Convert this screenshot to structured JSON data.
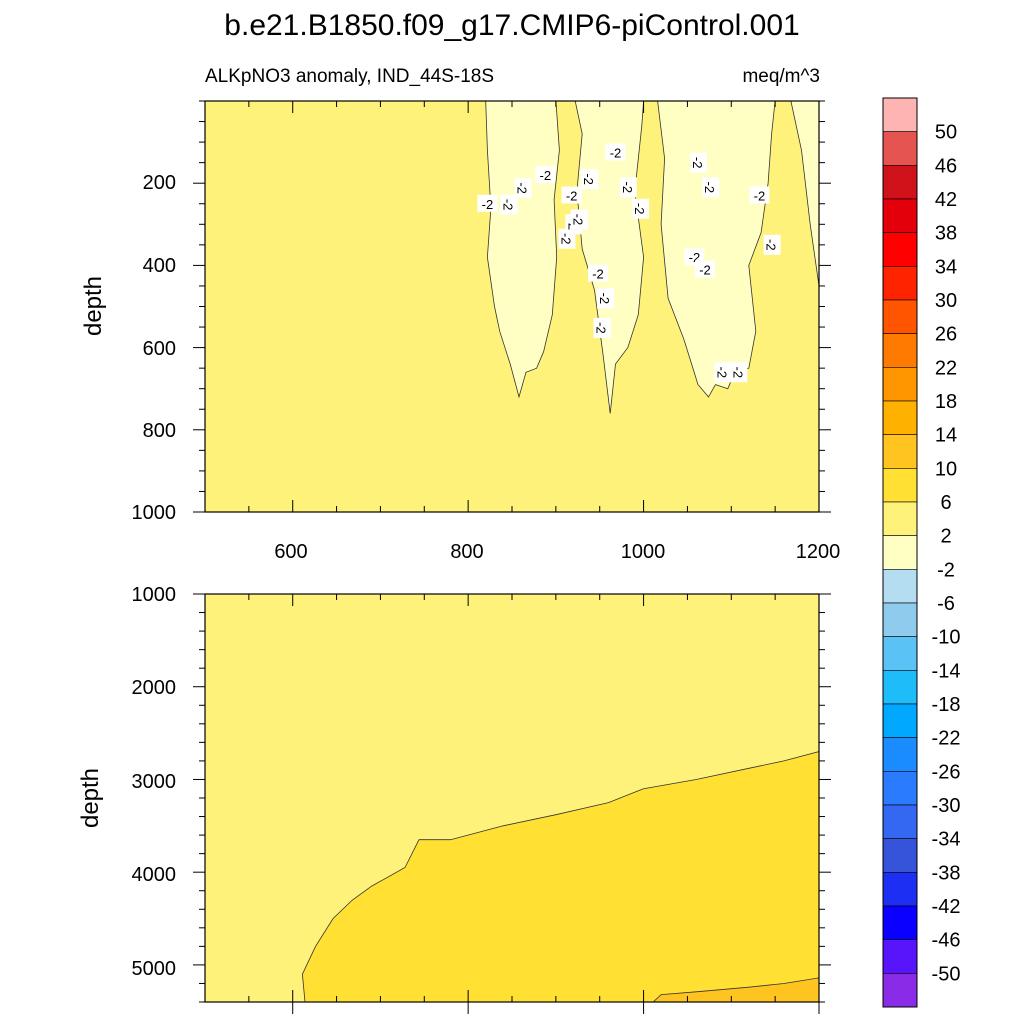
{
  "colors": {
    "background": "#ffffff",
    "frame": "#000000",
    "contour_line": "#333333",
    "label_box": "#ffffff"
  },
  "chart_data": {
    "type": "contour",
    "title": "b.e21.B1850.f09_g17.CMIP6-piControl.001",
    "subtitle_left": "ALKpNO3 anomaly, IND_44S-18S",
    "subtitle_right": "meq/m^3",
    "xlim": [
      500,
      1200
    ],
    "x_ticks": [
      "600",
      "800",
      "1000",
      "1200"
    ],
    "panels": [
      {
        "name": "upper",
        "ylabel": "depth",
        "ylim": [
          0,
          1000
        ],
        "y_reversed": true,
        "y_ticks": [
          "200",
          "400",
          "600",
          "800",
          "1000"
        ],
        "background_level": 2,
        "contour_labels": [
          "-2",
          "-2",
          "-2",
          "-2",
          "-2",
          "-2",
          "-2",
          "-2",
          "-2",
          "-2",
          "-2",
          "-2",
          "-2",
          "-2",
          "-2",
          "-2",
          "-2",
          "-2",
          "-2",
          "-2",
          "-2",
          "-2",
          "-2"
        ],
        "regions": [
          {
            "fill_level": -2,
            "boundary": [
              [
                808,
                0
              ],
              [
                820,
                0
              ],
              [
                822,
                120
              ],
              [
                826,
                260
              ],
              [
                822,
                380
              ],
              [
                830,
                500
              ],
              [
                836,
                560
              ],
              [
                848,
                640
              ],
              [
                858,
                720
              ],
              [
                866,
                660
              ],
              [
                878,
                650
              ],
              [
                886,
                610
              ],
              [
                896,
                520
              ],
              [
                901,
                380
              ],
              [
                898,
                240
              ],
              [
                904,
                120
              ],
              [
                900,
                0
              ],
              [
                922,
                0
              ],
              [
                930,
                80
              ],
              [
                924,
                220
              ],
              [
                930,
                360
              ],
              [
                944,
                460
              ],
              [
                954,
                620
              ],
              [
                962,
                760
              ],
              [
                968,
                640
              ],
              [
                982,
                600
              ],
              [
                994,
                520
              ],
              [
                1000,
                380
              ],
              [
                990,
                220
              ],
              [
                998,
                60
              ],
              [
                1000,
                0
              ],
              [
                1016,
                0
              ],
              [
                1024,
                140
              ],
              [
                1020,
                300
              ],
              [
                1028,
                480
              ],
              [
                1046,
                580
              ],
              [
                1062,
                690
              ],
              [
                1074,
                720
              ],
              [
                1082,
                690
              ],
              [
                1096,
                700
              ],
              [
                1104,
                660
              ],
              [
                1120,
                650
              ],
              [
                1128,
                560
              ],
              [
                1120,
                400
              ],
              [
                1134,
                320
              ],
              [
                1142,
                200
              ],
              [
                1146,
                80
              ],
              [
                1150,
                0
              ],
              [
                1168,
                0
              ],
              [
                1180,
                120
              ],
              [
                1190,
                300
              ],
              [
                1200,
                450
              ],
              [
                1200,
                0
              ]
            ]
          }
        ]
      },
      {
        "name": "lower",
        "ylabel": "depth",
        "ylim": [
          1000,
          5400
        ],
        "y_reversed": true,
        "y_ticks": [
          "1000",
          "2000",
          "3000",
          "4000",
          "5000"
        ],
        "background_level": 2,
        "regions": [
          {
            "fill_level": 6,
            "boundary": [
              [
                614,
                5400
              ],
              [
                611,
                5100
              ],
              [
                626,
                4800
              ],
              [
                646,
                4500
              ],
              [
                668,
                4300
              ],
              [
                690,
                4150
              ],
              [
                728,
                3950
              ],
              [
                744,
                3650
              ],
              [
                780,
                3650
              ],
              [
                840,
                3500
              ],
              [
                900,
                3380
              ],
              [
                960,
                3250
              ],
              [
                1000,
                3100
              ],
              [
                1060,
                3000
              ],
              [
                1120,
                2880
              ],
              [
                1160,
                2800
              ],
              [
                1200,
                2700
              ],
              [
                1200,
                5400
              ]
            ]
          },
          {
            "fill_level": 10,
            "boundary": [
              [
                1011,
                5400
              ],
              [
                1020,
                5320
              ],
              [
                1060,
                5290
              ],
              [
                1120,
                5240
              ],
              [
                1160,
                5200
              ],
              [
                1200,
                5140
              ],
              [
                1200,
                5400
              ]
            ]
          }
        ]
      }
    ],
    "colorbar": {
      "labels": [
        "50",
        "46",
        "42",
        "38",
        "34",
        "30",
        "26",
        "22",
        "18",
        "14",
        "10",
        "6",
        "2",
        "-2",
        "-6",
        "-10",
        "-14",
        "-18",
        "-22",
        "-26",
        "-30",
        "-34",
        "-38",
        "-42",
        "-46",
        "-50"
      ],
      "colors": [
        "#fdb4b3",
        "#e55451",
        "#d0131a",
        "#e3000a",
        "#ff0000",
        "#ff2400",
        "#ff5500",
        "#ff7a00",
        "#ff9600",
        "#ffb100",
        "#ffc41f",
        "#ffe033",
        "#fff27a",
        "#ffffc4",
        "#b4ddf2",
        "#8fcbed",
        "#5ac2f5",
        "#1fbcfa",
        "#00a8ff",
        "#1a8cff",
        "#2b7bff",
        "#3467f2",
        "#3554d9",
        "#1c2ff2",
        "#0a00ff",
        "#5814fa",
        "#8a2be8"
      ]
    }
  }
}
